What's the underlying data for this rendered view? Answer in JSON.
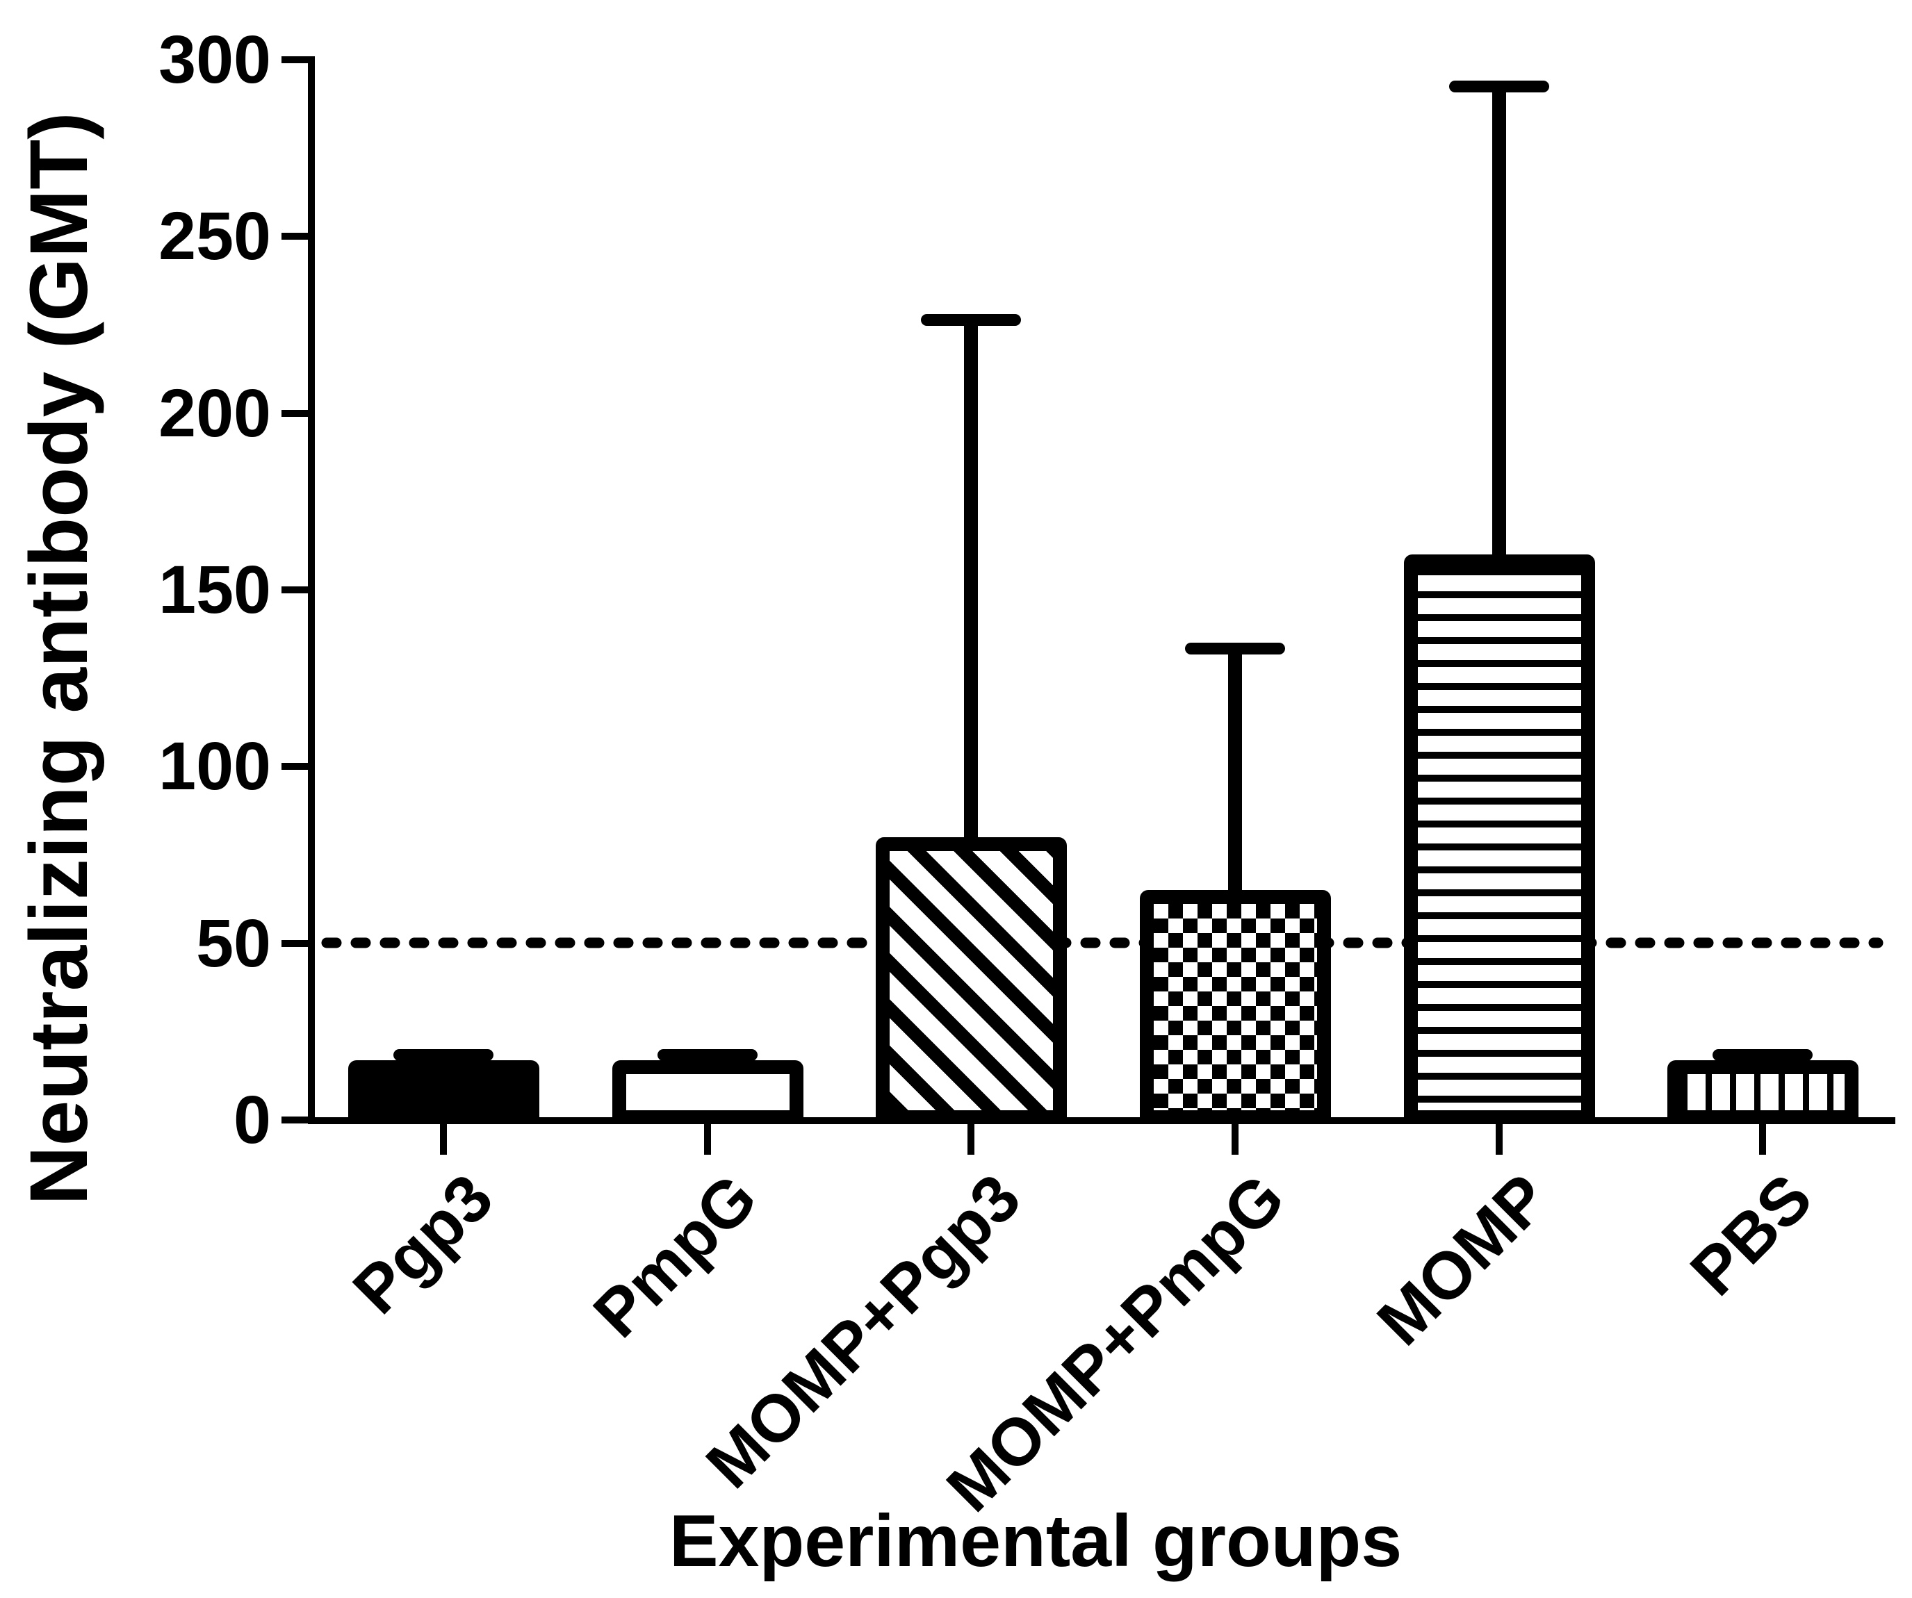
{
  "figure_caption": "",
  "colors": {
    "foreground": "#000000",
    "background": "#ffffff"
  },
  "chart_data": {
    "type": "bar",
    "title": "",
    "xlabel": "Experimental groups",
    "ylabel": "Neutralizing antibody (GMT)",
    "ylim": [
      0,
      300
    ],
    "yticks": [
      0,
      50,
      100,
      150,
      200,
      250,
      300
    ],
    "ytick_labels": [
      "300",
      "250",
      "200",
      "150",
      "100",
      "50",
      "0"
    ],
    "categories": [
      "Pgp3",
      "PmpG",
      "MOMP+Pgp3",
      "MOMP+PmpG",
      "MOMP",
      "PBS"
    ],
    "values": [
      17,
      17,
      80,
      65,
      160,
      17
    ],
    "error_top": [
      20,
      20,
      228,
      135,
      294,
      20
    ],
    "error_bars": "upper only",
    "bar_patterns": [
      "solid-black",
      "white",
      "diagonal-stripes",
      "checkerboard",
      "horizontal-stripes",
      "vertical-stripes"
    ],
    "threshold_line": {
      "y": 50,
      "style": "dashed"
    },
    "grid": "off",
    "legend": "none"
  }
}
